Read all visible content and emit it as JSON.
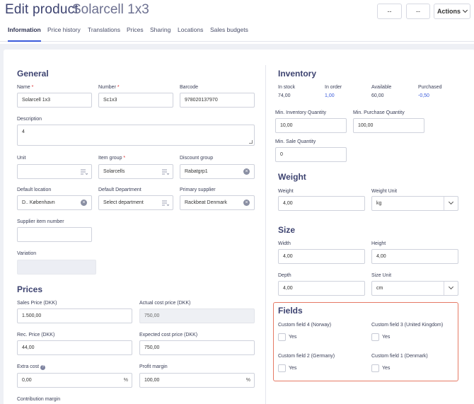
{
  "header": {
    "title": "Edit product",
    "subtitle": "Solarcell 1x3",
    "btn1": "--",
    "btn2": "--",
    "actions": "Actions"
  },
  "tabs": [
    "Information",
    "Price history",
    "Translations",
    "Prices",
    "Sharing",
    "Locations",
    "Sales budgets"
  ],
  "general": {
    "title": "General",
    "name_label": "Name",
    "name_value": "Solarcell 1x3",
    "number_label": "Number",
    "number_value": "Sc1x3",
    "barcode_label": "Barcode",
    "barcode_value": "978020137970",
    "description_label": "Description",
    "description_value": "4",
    "unit_label": "Unit",
    "item_group_label": "Item group",
    "item_group_value": "Solarcells",
    "discount_group_label": "Discount group",
    "discount_group_value": "Rabatgrp1",
    "default_location_label": "Default location",
    "default_location_value": "D.. København",
    "default_department_label": "Default Department",
    "default_department_placeholder": "Select department",
    "primary_supplier_label": "Primary supplier",
    "primary_supplier_value": "Rackbeat Denmark",
    "supplier_item_number_label": "Supplier item number",
    "variation_label": "Variation",
    "required_mark": "*"
  },
  "prices": {
    "title": "Prices",
    "sales_price_label": "Sales Price (DKK)",
    "sales_price_value": "1.500,00",
    "actual_cost_label": "Actual cost price (DKK)",
    "actual_cost_value": "750,00",
    "rec_price_label": "Rec. Price (DKK)",
    "rec_price_value": "44,00",
    "expected_cost_label": "Expected cost price (DKK)",
    "expected_cost_value": "750,00",
    "extra_cost_label": "Extra cost",
    "extra_cost_value": "0,00",
    "profit_margin_label": "Profit margin",
    "profit_margin_value": "100,00",
    "percent": "%",
    "contribution_margin_label": "Contribution margin"
  },
  "inventory": {
    "title": "Inventory",
    "in_stock_label": "In stock",
    "in_stock_value": "74,00",
    "in_order_label": "In order",
    "in_order_value": "1,00",
    "available_label": "Available",
    "available_value": "60,00",
    "purchased_label": "Purchased",
    "purchased_value": "-0,50",
    "min_inventory_label": "Min. Inventory Quantity",
    "min_inventory_value": "10,00",
    "min_purchase_label": "Min. Purchase Quantity",
    "min_purchase_value": "100,00",
    "min_sale_label": "Min. Sale Quantity",
    "min_sale_value": "0"
  },
  "weight": {
    "title": "Weight",
    "weight_label": "Weight",
    "weight_value": "4,00",
    "unit_label": "Weight Unit",
    "unit_value": "kg"
  },
  "size": {
    "title": "Size",
    "width_label": "Width",
    "width_value": "4,00",
    "height_label": "Height",
    "height_value": "4,00",
    "depth_label": "Depth",
    "depth_value": "4,00",
    "unit_label": "Size Unit",
    "unit_value": "cm"
  },
  "fields": {
    "title": "Fields",
    "items": [
      {
        "label": "Custom field 4 (Norway)",
        "option": "Yes"
      },
      {
        "label": "Custom field 3 (United Kingdom)",
        "option": "Yes"
      },
      {
        "label": "Custom field 2 (Germany)",
        "option": "Yes"
      },
      {
        "label": "Custom field 1 (Denmark)",
        "option": "Yes"
      }
    ]
  },
  "colors": {
    "accent": "#3b5bdb",
    "highlight_border": "#e57a65",
    "title": "#3d4370"
  }
}
